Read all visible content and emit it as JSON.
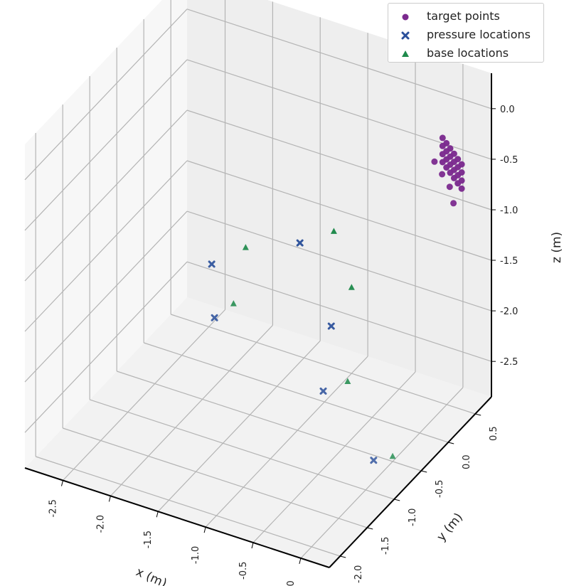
{
  "chart_data": {
    "type": "scatter",
    "projection": "3d",
    "xlabel": "x (m)",
    "ylabel": "y (m)",
    "zlabel": "z (m)",
    "x_ticks": [
      "-2.5",
      "-2.0",
      "-1.5",
      "-1.0",
      "-0.5",
      "0.0"
    ],
    "y_ticks": [
      "-2.0",
      "-1.5",
      "-1.0",
      "-0.5",
      "0.0",
      "0.5"
    ],
    "z_ticks": [
      "0.0",
      "-0.5",
      "-1.0",
      "-1.5",
      "-2.0",
      "-2.5"
    ],
    "xlim": [
      -2.9,
      0.3
    ],
    "ylim": [
      -2.2,
      0.8
    ],
    "zlim": [
      -2.85,
      0.35
    ],
    "grid": true,
    "legend_position": "top-right",
    "series": [
      {
        "name": "target points",
        "marker": "circle",
        "color": "#7b2a8e",
        "points": [
          [
            -0.1,
            0.6,
            -0.3
          ],
          [
            -0.1,
            0.6,
            -0.38
          ],
          [
            -0.1,
            0.6,
            -0.46
          ],
          [
            -0.1,
            0.6,
            -0.54
          ],
          [
            -0.06,
            0.6,
            -0.34
          ],
          [
            -0.06,
            0.6,
            -0.42
          ],
          [
            -0.06,
            0.6,
            -0.5
          ],
          [
            -0.06,
            0.6,
            -0.58
          ],
          [
            -0.02,
            0.6,
            -0.38
          ],
          [
            -0.02,
            0.6,
            -0.46
          ],
          [
            -0.02,
            0.6,
            -0.54
          ],
          [
            -0.02,
            0.6,
            -0.62
          ],
          [
            0.02,
            0.6,
            -0.42
          ],
          [
            0.02,
            0.6,
            -0.5
          ],
          [
            0.02,
            0.6,
            -0.58
          ],
          [
            0.02,
            0.6,
            -0.66
          ],
          [
            0.06,
            0.6,
            -0.46
          ],
          [
            0.06,
            0.6,
            -0.54
          ],
          [
            0.06,
            0.6,
            -0.62
          ],
          [
            0.06,
            0.6,
            -0.7
          ],
          [
            0.1,
            0.6,
            -0.5
          ],
          [
            0.1,
            0.6,
            -0.58
          ],
          [
            0.1,
            0.6,
            -0.66
          ],
          [
            0.1,
            0.6,
            -0.74
          ],
          [
            -0.1,
            0.45,
            -0.45
          ],
          [
            -0.02,
            0.45,
            -0.55
          ],
          [
            0.06,
            0.45,
            -0.65
          ],
          [
            0.1,
            0.45,
            -0.8
          ]
        ]
      },
      {
        "name": "pressure locations",
        "marker": "x",
        "color": "#2a4f9a",
        "points": [
          [
            -2.3,
            0.2,
            -2.0
          ],
          [
            -2.1,
            -0.1,
            -2.3
          ],
          [
            -1.1,
            0.3,
            -2.3
          ],
          [
            -0.9,
            -0.2,
            -2.6
          ],
          [
            -1.6,
            0.6,
            -1.8
          ],
          [
            -0.2,
            -0.5,
            -2.9
          ]
        ]
      },
      {
        "name": "base locations",
        "marker": "triangle",
        "color": "#1f8a4c",
        "points": [
          [
            -2.0,
            0.3,
            -1.8
          ],
          [
            -1.9,
            -0.1,
            -2.1
          ],
          [
            -1.3,
            0.7,
            -1.65
          ],
          [
            -1.0,
            0.5,
            -2.0
          ],
          [
            -0.7,
            -0.1,
            -2.5
          ],
          [
            0.0,
            -0.5,
            -2.8
          ]
        ]
      }
    ]
  }
}
